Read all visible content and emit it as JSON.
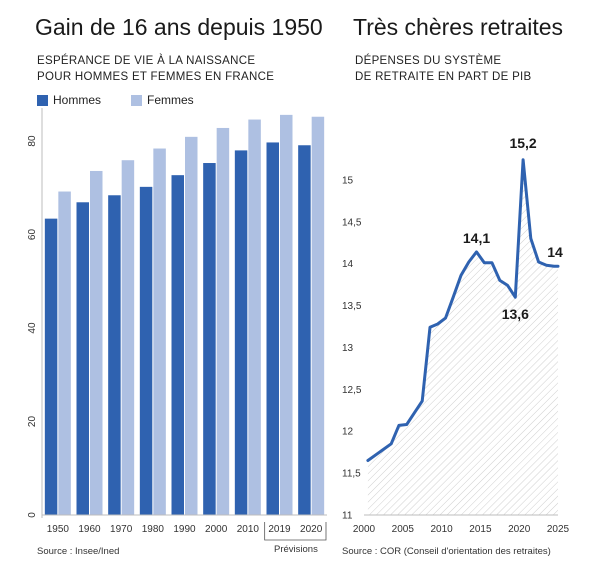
{
  "left": {
    "title": "Gain de 16 ans depuis 1950",
    "subtitle_lines": [
      "ESPÉRANCE DE VIE À LA NAISSANCE",
      "POUR HOMMES ET FEMMES EN FRANCE"
    ],
    "source": "Source : Insee/Ined",
    "note": "Prévisions"
  },
  "right": {
    "title": "Très chères retraites",
    "subtitle_lines": [
      "DÉPENSES DU SYSTÈME",
      "DE RETRAITE EN PART DE PIB"
    ],
    "source": "Source : COR (Conseil d'orientation des retraites)"
  },
  "colors": {
    "hommes": "#2f62b0",
    "femmes": "#aec0e2",
    "line": "#2f62b0",
    "hatch": "#cfcfcf"
  },
  "chart_data": [
    {
      "type": "bar",
      "title": "Gain de 16 ans depuis 1950",
      "categories": [
        "1950",
        "1960",
        "1970",
        "1980",
        "1990",
        "2000",
        "2010",
        "2019",
        "2020"
      ],
      "series": [
        {
          "name": "Hommes",
          "values": [
            63.4,
            66.9,
            68.4,
            70.2,
            72.7,
            75.3,
            78.0,
            79.7,
            79.1
          ]
        },
        {
          "name": "Femmes",
          "values": [
            69.2,
            73.6,
            75.9,
            78.4,
            80.9,
            82.8,
            84.6,
            85.6,
            85.2
          ]
        }
      ],
      "ylim": [
        0,
        86
      ],
      "yticks": [
        0,
        20,
        40,
        60,
        80
      ],
      "legend": "top-left",
      "grid": false,
      "annotations": [
        "Prévisions"
      ]
    },
    {
      "type": "line",
      "title": "Très chères retraites",
      "series": [
        {
          "x": [
            2000.5,
            2002,
            2003.5,
            2004.5,
            2005.5,
            2006.5,
            2007.5,
            2008.5,
            2009.5,
            2010.5,
            2011.5,
            2012.5,
            2013.5,
            2014.5,
            2015.5,
            2016.5,
            2017.5,
            2018.5,
            2019.5,
            2020.5,
            2021.5,
            2022.5,
            2023.5,
            2024.5,
            2025
          ],
          "y": [
            11.65,
            11.75,
            11.85,
            12.07,
            12.08,
            12.22,
            12.36,
            13.24,
            13.28,
            13.35,
            13.6,
            13.86,
            14.02,
            14.14,
            14.01,
            14.01,
            13.8,
            13.74,
            13.6,
            15.24,
            14.3,
            14.02,
            13.98,
            13.97,
            13.97
          ]
        }
      ],
      "xticks": [
        2000,
        2005,
        2010,
        2015,
        2020,
        2025
      ],
      "yticks": [
        11,
        11.5,
        12,
        12.5,
        13,
        13.5,
        14,
        14.5,
        15
      ],
      "xlim": [
        2000,
        2025
      ],
      "ylim": [
        11,
        15.5
      ],
      "data_labels": [
        {
          "x": 2014.5,
          "y": 14.14,
          "text": "14,1"
        },
        {
          "x": 2019.5,
          "y": 13.6,
          "text": "13,6"
        },
        {
          "x": 2020.5,
          "y": 15.24,
          "text": "15,2"
        },
        {
          "x": 2025,
          "y": 13.97,
          "text": "14"
        }
      ],
      "area_fill": "hatched",
      "grid": false
    }
  ]
}
